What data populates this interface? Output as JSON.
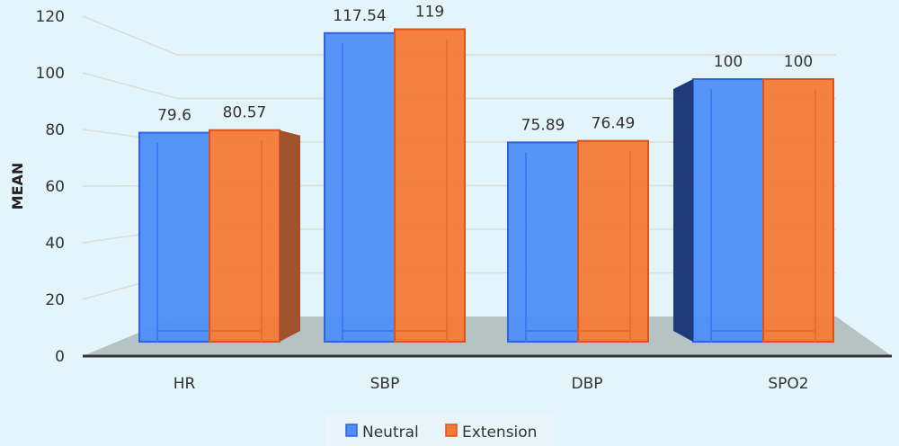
{
  "chart_data": {
    "type": "bar",
    "style": "3d-clustered",
    "title": "",
    "xlabel": "",
    "ylabel": "MEAN",
    "ylim": [
      0,
      120
    ],
    "yticks": [
      0,
      20,
      40,
      60,
      80,
      100,
      120
    ],
    "categories": [
      "HR",
      "SBP",
      "DBP",
      "SPO2"
    ],
    "series": [
      {
        "name": "Neutral",
        "color": "#4f8ef7",
        "values": [
          79.6,
          117.54,
          75.89,
          100
        ],
        "labels": [
          "79.6",
          "117.54",
          "75.89",
          "100"
        ]
      },
      {
        "name": "Extension",
        "color": "#f47a36",
        "values": [
          80.57,
          119,
          76.49,
          100
        ],
        "labels": [
          "80.57",
          "119",
          "76.49",
          "100"
        ]
      }
    ],
    "grid": true,
    "legend": "bottom",
    "background": "#e3f4fb"
  }
}
